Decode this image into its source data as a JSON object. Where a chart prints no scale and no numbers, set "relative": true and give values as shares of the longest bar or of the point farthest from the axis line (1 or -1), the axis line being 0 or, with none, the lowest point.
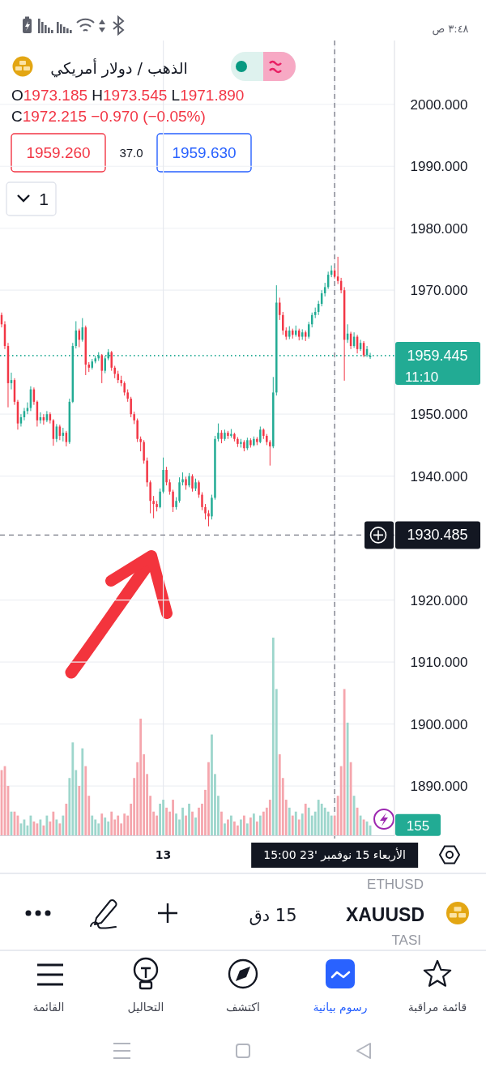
{
  "chart_data": [
    {
      "type": "candlestick",
      "title": "الذهب / دولار أمريكي",
      "tick_labels": "y",
      "annotations": [
        "٣:٤٨ ص",
        "O1973.185 H1973.545 L1971.890",
        "C1972.215 −0.970 (−0.05%)",
        "1959.260",
        "37.0",
        "1959.630",
        "1",
        "11:10",
        "15 دق",
        "XAUUSD",
        "ETHUSD",
        "TASI",
        "قائمة مراقبة",
        "رسوم بيانية",
        "اكتشف",
        "التحاليل",
        "القائمة"
      ],
      "categories": [
        null,
        null,
        null,
        null,
        null,
        null,
        null,
        null,
        null,
        null,
        null,
        null,
        null,
        null,
        null,
        null,
        null,
        null,
        null,
        null,
        null,
        null,
        null,
        null,
        null,
        null,
        null,
        null,
        null,
        null,
        null,
        null,
        null,
        null,
        null,
        null,
        null,
        null,
        null,
        null,
        null,
        null,
        null,
        null,
        null,
        null,
        null,
        null,
        null,
        null,
        null,
        null,
        null,
        null,
        null,
        null,
        null,
        null,
        null,
        null,
        null,
        null,
        null,
        null,
        null,
        null,
        null,
        null,
        null,
        null,
        null,
        null,
        null,
        null,
        null,
        null,
        null,
        null,
        null,
        null,
        null,
        null,
        null,
        null,
        null,
        null,
        null,
        null,
        null,
        null,
        null,
        null,
        null,
        null,
        null,
        null,
        null,
        null,
        null,
        null,
        null,
        null,
        null,
        null,
        null,
        null,
        null,
        null,
        null,
        null,
        null,
        null,
        null,
        null,
        null,
        null,
        null,
        null,
        null,
        null,
        null,
        null
      ],
      "ohlc": [
        [
          1966.0,
          1966.4,
          1964.0,
          1964.5
        ],
        [
          1964.5,
          1965.0,
          1960.5,
          1961.0
        ],
        [
          1961.0,
          1961.5,
          1951.1,
          1955.0
        ],
        [
          1955.0,
          1956.7,
          1954.0,
          1955.5
        ],
        [
          1955.5,
          1955.8,
          1951.5,
          1952.0
        ],
        [
          1952.0,
          1952.3,
          1947.5,
          1948.5
        ],
        [
          1948.5,
          1950.0,
          1948.0,
          1949.5
        ],
        [
          1949.5,
          1951.0,
          1949.0,
          1950.5
        ],
        [
          1950.5,
          1951.9,
          1950.0,
          1951.0
        ],
        [
          1951.0,
          1954.5,
          1950.5,
          1954.0
        ],
        [
          1954.0,
          1954.3,
          1951.5,
          1952.0
        ],
        [
          1952.0,
          1952.2,
          1948.0,
          1949.0
        ],
        [
          1949.0,
          1950.3,
          1948.5,
          1949.5
        ],
        [
          1949.5,
          1950.0,
          1948.3,
          1949.0
        ],
        [
          1949.0,
          1950.5,
          1948.7,
          1950.0
        ],
        [
          1950.0,
          1950.3,
          1948.5,
          1949.0
        ],
        [
          1949.0,
          1949.2,
          1944.9,
          1946.0
        ],
        [
          1946.0,
          1948.4,
          1945.5,
          1948.0
        ],
        [
          1948.0,
          1948.3,
          1945.8,
          1946.5
        ],
        [
          1946.5,
          1947.8,
          1945.6,
          1947.0
        ],
        [
          1947.0,
          1947.3,
          1944.8,
          1945.5
        ],
        [
          1945.5,
          1952.5,
          1945.2,
          1952.0
        ],
        [
          1952.0,
          1961.5,
          1951.8,
          1961.0
        ],
        [
          1961.0,
          1965.0,
          1960.6,
          1963.5
        ],
        [
          1963.5,
          1963.8,
          1960.8,
          1962.0
        ],
        [
          1962.0,
          1965.5,
          1961.7,
          1964.0
        ],
        [
          1964.0,
          1964.3,
          1956.3,
          1958.0
        ],
        [
          1958.0,
          1958.4,
          1956.8,
          1957.5
        ],
        [
          1957.5,
          1958.9,
          1957.2,
          1958.5
        ],
        [
          1958.5,
          1959.4,
          1958.2,
          1959.0
        ],
        [
          1959.0,
          1960.0,
          1958.6,
          1959.5
        ],
        [
          1959.5,
          1959.7,
          1955.0,
          1957.0
        ],
        [
          1957.0,
          1959.4,
          1956.6,
          1959.0
        ],
        [
          1959.0,
          1960.5,
          1958.7,
          1960.0
        ],
        [
          1960.0,
          1960.2,
          1957.0,
          1957.5
        ],
        [
          1957.5,
          1957.8,
          1955.8,
          1956.5
        ],
        [
          1956.5,
          1957.0,
          1955.0,
          1955.5
        ],
        [
          1955.5,
          1956.2,
          1954.5,
          1955.0
        ],
        [
          1955.0,
          1955.3,
          1953.0,
          1953.5
        ],
        [
          1953.5,
          1954.0,
          1952.0,
          1952.5
        ],
        [
          1952.5,
          1952.8,
          1949.5,
          1950.0
        ],
        [
          1950.0,
          1950.4,
          1948.4,
          1949.0
        ],
        [
          1949.0,
          1949.3,
          1945.5,
          1946.0
        ],
        [
          1946.0,
          1946.4,
          1944.0,
          1945.5
        ],
        [
          1945.5,
          1945.8,
          1942.0,
          1942.5
        ],
        [
          1942.5,
          1943.0,
          1938.3,
          1939.0
        ],
        [
          1939.0,
          1939.3,
          1934.0,
          1936.0
        ],
        [
          1936.0,
          1936.8,
          1933.2,
          1935.5
        ],
        [
          1935.5,
          1936.0,
          1934.3,
          1935.0
        ],
        [
          1935.0,
          1938.0,
          1934.8,
          1937.5
        ],
        [
          1937.5,
          1943.0,
          1937.2,
          1941.0
        ],
        [
          1941.0,
          1941.5,
          1938.5,
          1939.0
        ],
        [
          1939.0,
          1939.5,
          1937.0,
          1937.5
        ],
        [
          1937.5,
          1937.8,
          1934.2,
          1935.0
        ],
        [
          1935.0,
          1936.6,
          1934.6,
          1936.0
        ],
        [
          1936.0,
          1939.8,
          1935.7,
          1939.0
        ],
        [
          1939.0,
          1940.6,
          1938.5,
          1939.5
        ],
        [
          1939.5,
          1939.9,
          1937.8,
          1938.5
        ],
        [
          1938.5,
          1940.5,
          1938.2,
          1940.0
        ],
        [
          1940.0,
          1940.3,
          1937.5,
          1938.0
        ],
        [
          1938.0,
          1939.6,
          1937.6,
          1939.0
        ],
        [
          1939.0,
          1939.3,
          1936.5,
          1937.0
        ],
        [
          1937.0,
          1937.4,
          1934.5,
          1935.0
        ],
        [
          1935.0,
          1935.5,
          1933.0,
          1934.0
        ],
        [
          1934.0,
          1934.5,
          1931.9,
          1933.5
        ],
        [
          1933.5,
          1937.0,
          1933.0,
          1936.5
        ],
        [
          1936.5,
          1946.5,
          1936.2,
          1946.0
        ],
        [
          1946.0,
          1948.5,
          1945.6,
          1947.0
        ],
        [
          1947.0,
          1947.4,
          1945.3,
          1946.0
        ],
        [
          1946.0,
          1947.5,
          1945.7,
          1947.0
        ],
        [
          1947.0,
          1947.3,
          1946.0,
          1946.5
        ],
        [
          1946.5,
          1947.6,
          1946.2,
          1946.8
        ],
        [
          1946.8,
          1947.0,
          1945.6,
          1946.0
        ],
        [
          1946.0,
          1946.3,
          1944.7,
          1945.2
        ],
        [
          1945.2,
          1946.0,
          1944.6,
          1945.5
        ],
        [
          1945.5,
          1945.8,
          1944.0,
          1944.5
        ],
        [
          1944.5,
          1946.2,
          1944.2,
          1945.8
        ],
        [
          1945.8,
          1946.1,
          1944.6,
          1945.0
        ],
        [
          1945.0,
          1946.4,
          1944.8,
          1946.0
        ],
        [
          1946.0,
          1946.3,
          1945.0,
          1945.5
        ],
        [
          1945.5,
          1948.0,
          1945.3,
          1947.5
        ],
        [
          1947.5,
          1947.7,
          1946.0,
          1946.5
        ],
        [
          1946.5,
          1946.8,
          1945.0,
          1945.5
        ],
        [
          1945.5,
          1945.8,
          1941.7,
          1944.8
        ],
        [
          1944.8,
          1956.0,
          1944.5,
          1953.5
        ],
        [
          1953.5,
          1970.8,
          1953.0,
          1968.0
        ],
        [
          1968.0,
          1968.8,
          1965.2,
          1966.0
        ],
        [
          1966.0,
          1966.5,
          1962.8,
          1963.5
        ],
        [
          1963.5,
          1964.0,
          1962.0,
          1962.5
        ],
        [
          1962.5,
          1964.2,
          1962.1,
          1963.5
        ],
        [
          1963.5,
          1963.8,
          1962.2,
          1962.8
        ],
        [
          1962.8,
          1964.3,
          1962.5,
          1963.5
        ],
        [
          1963.5,
          1963.8,
          1961.9,
          1962.5
        ],
        [
          1962.5,
          1963.7,
          1962.0,
          1963.2
        ],
        [
          1963.2,
          1963.5,
          1961.8,
          1962.5
        ],
        [
          1962.5,
          1964.9,
          1962.2,
          1964.5
        ],
        [
          1964.5,
          1966.4,
          1964.0,
          1966.0
        ],
        [
          1966.0,
          1967.2,
          1965.5,
          1966.5
        ],
        [
          1966.5,
          1968.3,
          1966.0,
          1967.8
        ],
        [
          1967.8,
          1970.0,
          1967.4,
          1969.5
        ],
        [
          1969.5,
          1971.2,
          1969.0,
          1970.5
        ],
        [
          1970.5,
          1973.0,
          1970.2,
          1972.5
        ],
        [
          1972.5,
          1974.0,
          1972.1,
          1973.185
        ],
        [
          1973.185,
          1973.545,
          1971.89,
          1972.215
        ],
        [
          1972.215,
          1975.4,
          1971.0,
          1971.5
        ],
        [
          1971.5,
          1972.0,
          1969.5,
          1970.0
        ],
        [
          1970.0,
          1970.5,
          1955.4,
          1962.0
        ],
        [
          1962.0,
          1964.5,
          1961.5,
          1963.0
        ],
        [
          1963.0,
          1963.3,
          1960.5,
          1961.0
        ],
        [
          1961.0,
          1963.2,
          1960.7,
          1962.5
        ],
        [
          1962.5,
          1962.8,
          1959.8,
          1960.5
        ],
        [
          1960.5,
          1962.0,
          1960.2,
          1961.5
        ],
        [
          1961.5,
          1961.8,
          1959.2,
          1959.5
        ],
        [
          1959.5,
          1961.0,
          1959.2,
          1960.5
        ],
        [
          1959.2,
          1959.9,
          1958.9,
          1959.445
        ],
        null,
        null,
        null,
        null,
        null,
        null,
        null
      ],
      "colors": [
        "#f23645",
        "#f23645",
        "#f23645",
        "#22ab94",
        "#f23645",
        "#f23645",
        "#22ab94",
        "#22ab94",
        "#22ab94",
        "#22ab94",
        "#f23645",
        "#f23645",
        "#22ab94",
        "#f23645",
        "#22ab94",
        "#f23645",
        "#f23645",
        "#22ab94",
        "#f23645",
        "#22ab94",
        "#f23645",
        "#22ab94",
        "#22ab94",
        "#22ab94",
        "#f23645",
        "#22ab94",
        "#f23645",
        "#f23645",
        "#22ab94",
        "#22ab94",
        "#22ab94",
        "#f23645",
        "#22ab94",
        "#22ab94",
        "#f23645",
        "#f23645",
        "#f23645",
        "#f23645",
        "#f23645",
        "#f23645",
        "#f23645",
        "#f23645",
        "#f23645",
        "#f23645",
        "#f23645",
        "#f23645",
        "#f23645",
        "#f23645",
        "#f23645",
        "#22ab94",
        "#22ab94",
        "#f23645",
        "#f23645",
        "#f23645",
        "#22ab94",
        "#22ab94",
        "#22ab94",
        "#f23645",
        "#22ab94",
        "#f23645",
        "#22ab94",
        "#f23645",
        "#f23645",
        "#f23645",
        "#f23645",
        "#22ab94",
        "#22ab94",
        "#22ab94",
        "#f23645",
        "#22ab94",
        "#f23645",
        "#22ab94",
        "#f23645",
        "#f23645",
        "#22ab94",
        "#f23645",
        "#22ab94",
        "#f23645",
        "#22ab94",
        "#f23645",
        "#22ab94",
        "#f23645",
        "#f23645",
        "#f23645",
        "#22ab94",
        "#22ab94",
        "#f23645",
        "#f23645",
        "#f23645",
        "#22ab94",
        "#f23645",
        "#22ab94",
        "#f23645",
        "#22ab94",
        "#f23645",
        "#22ab94",
        "#22ab94",
        "#22ab94",
        "#22ab94",
        "#22ab94",
        "#22ab94",
        "#22ab94",
        "#22ab94",
        "#f23645",
        "#f23645",
        "#f23645",
        "#f23645",
        "#22ab94",
        "#f23645",
        "#22ab94",
        "#f23645",
        "#22ab94",
        "#f23645",
        "#22ab94",
        "#22ab94",
        null,
        null,
        null,
        null,
        null,
        null,
        null
      ],
      "ylim": [
        1881.9,
        2010.3
      ],
      "yticks": [
        {
          "value": 2000,
          "label": "2000.000"
        },
        {
          "value": 1990,
          "label": "1990.000"
        },
        {
          "value": 1980,
          "label": "1980.000"
        },
        {
          "value": 1970,
          "label": "1970.000"
        },
        {
          "value": 1950,
          "label": "1950.000"
        },
        {
          "value": 1940,
          "label": "1940.000"
        },
        {
          "value": 1920,
          "label": "1920.000"
        },
        {
          "value": 1910,
          "label": "1910.000"
        },
        {
          "value": 1900,
          "label": "1900.000"
        },
        {
          "value": 1890,
          "label": "1890.000"
        }
      ],
      "grid": "y",
      "ref_lines": [
        {
          "axis": "y",
          "value": 1959.445,
          "label": "1959.445",
          "color": "#22ab94",
          "line_style": "dotted"
        },
        {
          "axis": "y",
          "value": 1930.485,
          "label": "1930.485",
          "color": "#787b86",
          "line_style": "dashed"
        }
      ]
    },
    {
      "type": "bar",
      "relative": true,
      "color": "#22ab94",
      "annotations": [
        "155"
      ],
      "grid": "x",
      "categories": [
        null,
        null,
        null,
        null,
        null,
        null,
        null,
        null,
        null,
        null,
        null,
        null,
        null,
        null,
        null,
        null,
        null,
        null,
        null,
        null,
        null,
        null,
        null,
        null,
        null,
        null,
        null,
        null,
        null,
        null,
        null,
        null,
        null,
        null,
        null,
        null,
        null,
        null,
        null,
        null,
        null,
        null,
        null,
        null,
        null,
        null,
        null,
        null,
        null,
        null,
        "13",
        null,
        null,
        null,
        null,
        null,
        null,
        null,
        null,
        null,
        null,
        null,
        null,
        null,
        null,
        null,
        null,
        null,
        null,
        null,
        null,
        null,
        null,
        null,
        null,
        null,
        null,
        null,
        null,
        null,
        null,
        null,
        null,
        null,
        null,
        null,
        null,
        null,
        null,
        null,
        null,
        null,
        null,
        null,
        null,
        null,
        null,
        null,
        null,
        null,
        null,
        null,
        null,
        "الأربعاء 15 نوفمبر '23 15:00",
        null,
        null,
        null,
        null,
        null,
        null,
        null,
        null,
        null,
        null,
        null,
        null,
        null,
        null,
        null,
        null,
        null,
        null
      ],
      "values": [
        0.33,
        0.35,
        0.25,
        0.12,
        0.12,
        0.1,
        0.06,
        0.08,
        0.05,
        0.1,
        0.07,
        0.06,
        0.08,
        0.05,
        0.1,
        0.07,
        0.12,
        0.08,
        0.06,
        0.1,
        0.16,
        0.29,
        0.47,
        0.33,
        0.25,
        0.44,
        0.35,
        0.2,
        0.1,
        0.08,
        0.06,
        0.11,
        0.09,
        0.07,
        0.12,
        0.08,
        0.1,
        0.06,
        0.11,
        0.1,
        0.16,
        0.29,
        0.37,
        0.59,
        0.41,
        0.31,
        0.2,
        0.12,
        0.1,
        0.16,
        0.18,
        0.14,
        0.12,
        0.18,
        0.11,
        0.08,
        0.14,
        0.1,
        0.16,
        0.12,
        0.09,
        0.14,
        0.16,
        0.23,
        0.37,
        0.51,
        0.31,
        0.2,
        0.12,
        0.06,
        0.08,
        0.1,
        0.07,
        0.05,
        0.08,
        0.1,
        0.06,
        0.09,
        0.11,
        0.07,
        0.1,
        0.12,
        0.14,
        0.18,
        1,
        0.74,
        0.41,
        0.29,
        0.18,
        0.14,
        0.1,
        0.12,
        0.08,
        0.11,
        0.16,
        0.14,
        0.1,
        0.12,
        0.18,
        0.16,
        0.14,
        0.12,
        0.1,
        0.1,
        0.2,
        0.35,
        0.74,
        0.57,
        0.37,
        0.2,
        0.14,
        0.1,
        0.08,
        0.07,
        0.05,
        null,
        null,
        null,
        null,
        null,
        null,
        null
      ],
      "colors": [
        "#f5a6ad",
        "#f5a6ad",
        "#f5a6ad",
        "#9dd6cc",
        "#f5a6ad",
        "#f5a6ad",
        "#9dd6cc",
        "#9dd6cc",
        "#9dd6cc",
        "#9dd6cc",
        "#f5a6ad",
        "#f5a6ad",
        "#9dd6cc",
        "#f5a6ad",
        "#9dd6cc",
        "#f5a6ad",
        "#f5a6ad",
        "#9dd6cc",
        "#f5a6ad",
        "#9dd6cc",
        "#f5a6ad",
        "#9dd6cc",
        "#9dd6cc",
        "#9dd6cc",
        "#f5a6ad",
        "#9dd6cc",
        "#f5a6ad",
        "#f5a6ad",
        "#9dd6cc",
        "#9dd6cc",
        "#9dd6cc",
        "#f5a6ad",
        "#9dd6cc",
        "#9dd6cc",
        "#f5a6ad",
        "#f5a6ad",
        "#f5a6ad",
        "#f5a6ad",
        "#f5a6ad",
        "#f5a6ad",
        "#f5a6ad",
        "#f5a6ad",
        "#f5a6ad",
        "#f5a6ad",
        "#f5a6ad",
        "#f5a6ad",
        "#f5a6ad",
        "#f5a6ad",
        "#f5a6ad",
        "#9dd6cc",
        "#9dd6cc",
        "#f5a6ad",
        "#f5a6ad",
        "#f5a6ad",
        "#9dd6cc",
        "#9dd6cc",
        "#9dd6cc",
        "#f5a6ad",
        "#9dd6cc",
        "#f5a6ad",
        "#9dd6cc",
        "#f5a6ad",
        "#f5a6ad",
        "#f5a6ad",
        "#f5a6ad",
        "#9dd6cc",
        "#9dd6cc",
        "#9dd6cc",
        "#f5a6ad",
        "#9dd6cc",
        "#f5a6ad",
        "#9dd6cc",
        "#f5a6ad",
        "#f5a6ad",
        "#9dd6cc",
        "#f5a6ad",
        "#9dd6cc",
        "#f5a6ad",
        "#9dd6cc",
        "#f5a6ad",
        "#9dd6cc",
        "#f5a6ad",
        "#f5a6ad",
        "#f5a6ad",
        "#9dd6cc",
        "#9dd6cc",
        "#f5a6ad",
        "#f5a6ad",
        "#f5a6ad",
        "#9dd6cc",
        "#f5a6ad",
        "#9dd6cc",
        "#f5a6ad",
        "#9dd6cc",
        "#f5a6ad",
        "#9dd6cc",
        "#9dd6cc",
        "#9dd6cc",
        "#9dd6cc",
        "#9dd6cc",
        "#9dd6cc",
        "#9dd6cc",
        "#9dd6cc",
        "#f5a6ad",
        "#f5a6ad",
        "#f5a6ad",
        "#f5a6ad",
        "#9dd6cc",
        "#f5a6ad",
        "#9dd6cc",
        "#f5a6ad",
        "#9dd6cc",
        "#f5a6ad",
        "#9dd6cc",
        "#9dd6cc",
        null,
        null,
        null,
        null,
        null,
        null,
        null
      ],
      "ref_lines": [
        {
          "axis": "x",
          "value": "الأربعاء 15 نوفمبر '23 15:00",
          "color": "#787b86",
          "line_style": "dashed"
        }
      ]
    }
  ]
}
